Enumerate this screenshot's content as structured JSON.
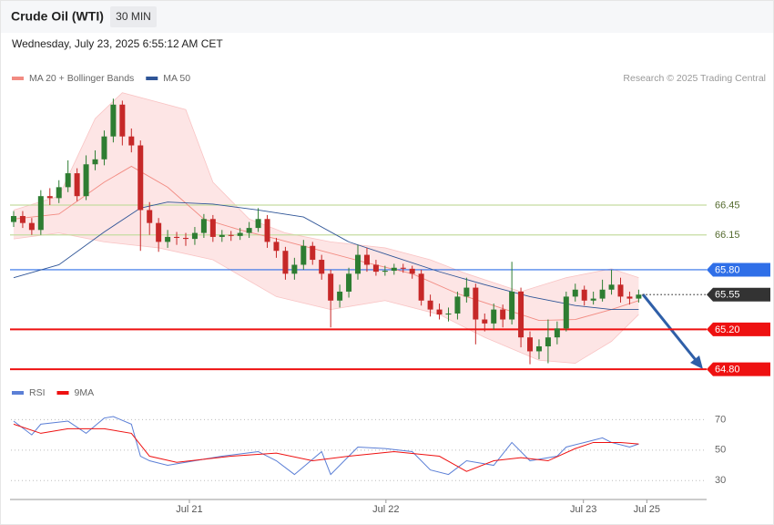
{
  "header": {
    "title": "Crude Oil (WTI)",
    "interval": "30 MIN",
    "date": "Wednesday, July 23, 2025 6:55:12 AM CET"
  },
  "chart_data": {
    "type": "candlestick",
    "legend": [
      {
        "name": "MA 20 + Bollinger Bands",
        "color": "#f28b82"
      },
      {
        "name": "MA 50",
        "color": "#2f5597"
      }
    ],
    "credit": "Research © 2025 Trading Central",
    "xlim": [
      -0.3,
      76.5
    ],
    "xticks": [
      {
        "value": 19.4,
        "label": "Jul 21"
      },
      {
        "value": 41.1,
        "label": "Jul 22"
      },
      {
        "value": 62.9,
        "label": "Jul 23"
      },
      {
        "value": 69.9,
        "label": "Jul 25"
      }
    ],
    "ylim": [
      64.7,
      67.6
    ],
    "up_color": "#2e7d32",
    "down_color": "#c62828",
    "open": [
      66.28,
      66.34,
      66.27,
      66.2,
      66.54,
      66.52,
      66.63,
      66.77,
      66.54,
      66.86,
      66.91,
      67.14,
      67.46,
      67.14,
      67.05,
      66.4,
      66.27,
      66.08,
      66.13,
      66.12,
      66.11,
      66.17,
      66.31,
      66.13,
      66.15,
      66.14,
      66.17,
      66.22,
      66.31,
      66.08,
      65.99,
      65.76,
      65.85,
      66.04,
      65.9,
      65.76,
      65.49,
      65.58,
      65.76,
      65.95,
      65.85,
      65.78,
      65.79,
      65.82,
      65.81,
      65.76,
      65.49,
      65.4,
      65.35,
      65.36,
      65.53,
      65.62,
      65.3,
      65.26,
      65.4,
      65.3,
      65.58,
      65.12,
      64.98,
      65.03,
      65.12,
      65.21,
      65.53,
      65.6,
      65.49,
      65.51,
      65.6,
      65.65,
      65.53,
      65.51
    ],
    "high": [
      66.39,
      66.39,
      66.32,
      66.6,
      66.62,
      66.7,
      66.9,
      66.82,
      66.95,
      67.0,
      67.2,
      67.52,
      67.5,
      67.22,
      67.1,
      66.48,
      66.32,
      66.2,
      66.18,
      66.17,
      66.23,
      66.36,
      66.35,
      66.2,
      66.19,
      66.22,
      66.28,
      66.42,
      66.35,
      66.12,
      66.03,
      65.92,
      66.1,
      66.08,
      65.95,
      65.8,
      65.65,
      65.82,
      66.05,
      66.02,
      65.9,
      65.84,
      65.86,
      65.86,
      65.84,
      65.8,
      65.55,
      65.46,
      65.42,
      65.58,
      65.72,
      65.66,
      65.36,
      65.46,
      65.45,
      65.88,
      65.62,
      65.18,
      65.1,
      65.3,
      65.28,
      65.58,
      65.66,
      65.64,
      65.58,
      65.7,
      65.8,
      65.72,
      65.58,
      65.6
    ],
    "low": [
      66.23,
      66.22,
      66.15,
      66.15,
      66.45,
      66.47,
      66.58,
      66.49,
      66.5,
      66.8,
      66.85,
      67.08,
      67.05,
      66.98,
      65.99,
      66.15,
      65.98,
      66.02,
      66.05,
      66.04,
      66.05,
      66.12,
      66.08,
      66.08,
      66.09,
      66.1,
      66.12,
      66.18,
      66.02,
      65.92,
      65.7,
      65.7,
      65.8,
      65.85,
      65.7,
      65.22,
      65.42,
      65.52,
      65.7,
      65.78,
      65.74,
      65.74,
      65.75,
      65.77,
      65.71,
      65.44,
      65.33,
      65.3,
      65.28,
      65.3,
      65.47,
      65.05,
      65.18,
      65.2,
      65.22,
      65.25,
      65.02,
      64.85,
      64.9,
      64.86,
      65.05,
      65.18,
      65.48,
      65.44,
      65.45,
      65.48,
      65.55,
      65.47,
      65.45,
      65.47
    ],
    "close": [
      66.34,
      66.27,
      66.2,
      66.54,
      66.52,
      66.63,
      66.77,
      66.54,
      66.86,
      66.91,
      67.14,
      67.46,
      67.14,
      67.05,
      66.4,
      66.27,
      66.08,
      66.13,
      66.12,
      66.11,
      66.17,
      66.31,
      66.13,
      66.15,
      66.14,
      66.17,
      66.22,
      66.31,
      66.08,
      65.99,
      65.76,
      65.85,
      66.04,
      65.9,
      65.76,
      65.49,
      65.58,
      65.76,
      65.95,
      65.85,
      65.78,
      65.79,
      65.82,
      65.81,
      65.76,
      65.49,
      65.4,
      65.35,
      65.36,
      65.53,
      65.62,
      65.3,
      65.26,
      65.4,
      65.3,
      65.58,
      65.12,
      64.98,
      65.03,
      65.12,
      65.21,
      65.53,
      65.6,
      65.49,
      65.51,
      65.6,
      65.65,
      65.53,
      65.51,
      65.55
    ],
    "bands": {
      "upper": {
        "x": [
          0,
          5,
          9,
          12,
          19,
          22,
          26,
          30,
          35,
          41,
          46,
          50,
          56,
          61,
          66,
          69
        ],
        "values": [
          66.4,
          66.54,
          67.32,
          67.58,
          67.41,
          66.68,
          66.31,
          66.17,
          66.08,
          66.02,
          65.9,
          65.76,
          65.58,
          65.72,
          65.81,
          65.72
        ]
      },
      "lower": {
        "x": [
          0,
          5,
          10,
          16,
          22,
          29,
          35,
          41,
          47,
          52,
          58,
          62,
          66,
          69
        ],
        "values": [
          66.11,
          66.17,
          66.08,
          66.02,
          65.9,
          65.53,
          65.4,
          65.49,
          65.35,
          65.12,
          64.89,
          64.86,
          65.08,
          65.35
        ]
      },
      "fill": "#fde0e0"
    },
    "series": [
      {
        "name": "MA 20",
        "color": "#f28b82",
        "x": [
          0,
          5,
          10,
          13,
          17,
          21,
          25,
          29,
          34,
          39,
          44,
          49,
          54,
          58,
          62,
          66,
          69
        ],
        "values": [
          66.31,
          66.36,
          66.68,
          66.84,
          66.63,
          66.31,
          66.2,
          66.11,
          65.99,
          65.87,
          65.76,
          65.56,
          65.41,
          65.29,
          65.3,
          65.4,
          65.49
        ]
      },
      {
        "name": "MA 50",
        "color": "#2f5597",
        "x": [
          0,
          5,
          10,
          14,
          17,
          22,
          27,
          32,
          37,
          42,
          47,
          52,
          57,
          62,
          66,
          69
        ],
        "values": [
          65.72,
          65.85,
          66.18,
          66.42,
          66.48,
          66.46,
          66.4,
          66.33,
          66.08,
          65.93,
          65.78,
          65.65,
          65.53,
          65.44,
          65.4,
          65.4
        ]
      }
    ],
    "levels": [
      {
        "value": 66.45,
        "label": "66.45",
        "color": "#c5dca0",
        "box": false
      },
      {
        "value": 66.15,
        "label": "66.15",
        "color": "#c5dca0",
        "box": false
      },
      {
        "value": 65.8,
        "label": "65.80",
        "color": "#2f6fe8",
        "box": true
      },
      {
        "value": 65.55,
        "label": "65.55",
        "color": "#333333",
        "box": true,
        "dotted": true
      },
      {
        "value": 65.2,
        "label": "65.20",
        "color": "#ee1111",
        "box": true
      },
      {
        "value": 64.8,
        "label": "64.80",
        "color": "#ee1111",
        "box": true
      }
    ],
    "rsi": {
      "legend": [
        {
          "name": "RSI",
          "color": "#5b7fd6"
        },
        {
          "name": "9MA",
          "color": "#ee1111"
        }
      ],
      "ylim": [
        20,
        75
      ],
      "yticks": [
        70,
        50,
        30
      ],
      "series": [
        {
          "name": "RSI",
          "color": "#5b7fd6",
          "x": [
            0,
            2,
            3,
            6,
            8,
            10,
            11,
            13,
            14,
            15,
            17,
            20,
            23,
            27,
            29,
            31,
            34,
            35,
            37,
            38,
            41,
            44,
            46,
            48,
            50,
            53,
            55,
            57,
            60,
            61,
            63,
            65,
            66,
            68,
            69
          ],
          "values": [
            69,
            60,
            67,
            69,
            61,
            71,
            72,
            67,
            46,
            43,
            40,
            43,
            46,
            49,
            43,
            34,
            49,
            34,
            46,
            52,
            51,
            49,
            37,
            34,
            43,
            40,
            55,
            43,
            46,
            52,
            55,
            58,
            55,
            52,
            54
          ]
        },
        {
          "name": "9MA",
          "color": "#ee1111",
          "x": [
            0,
            3,
            6,
            10,
            13,
            15,
            18,
            24,
            29,
            33,
            37,
            42,
            47,
            50,
            53,
            56,
            59,
            62,
            64,
            67,
            69
          ],
          "values": [
            67,
            61,
            64,
            64,
            61,
            46,
            42,
            46,
            48,
            43,
            46,
            49,
            46,
            36,
            43,
            45,
            43,
            51,
            55,
            55,
            54
          ]
        }
      ]
    }
  }
}
